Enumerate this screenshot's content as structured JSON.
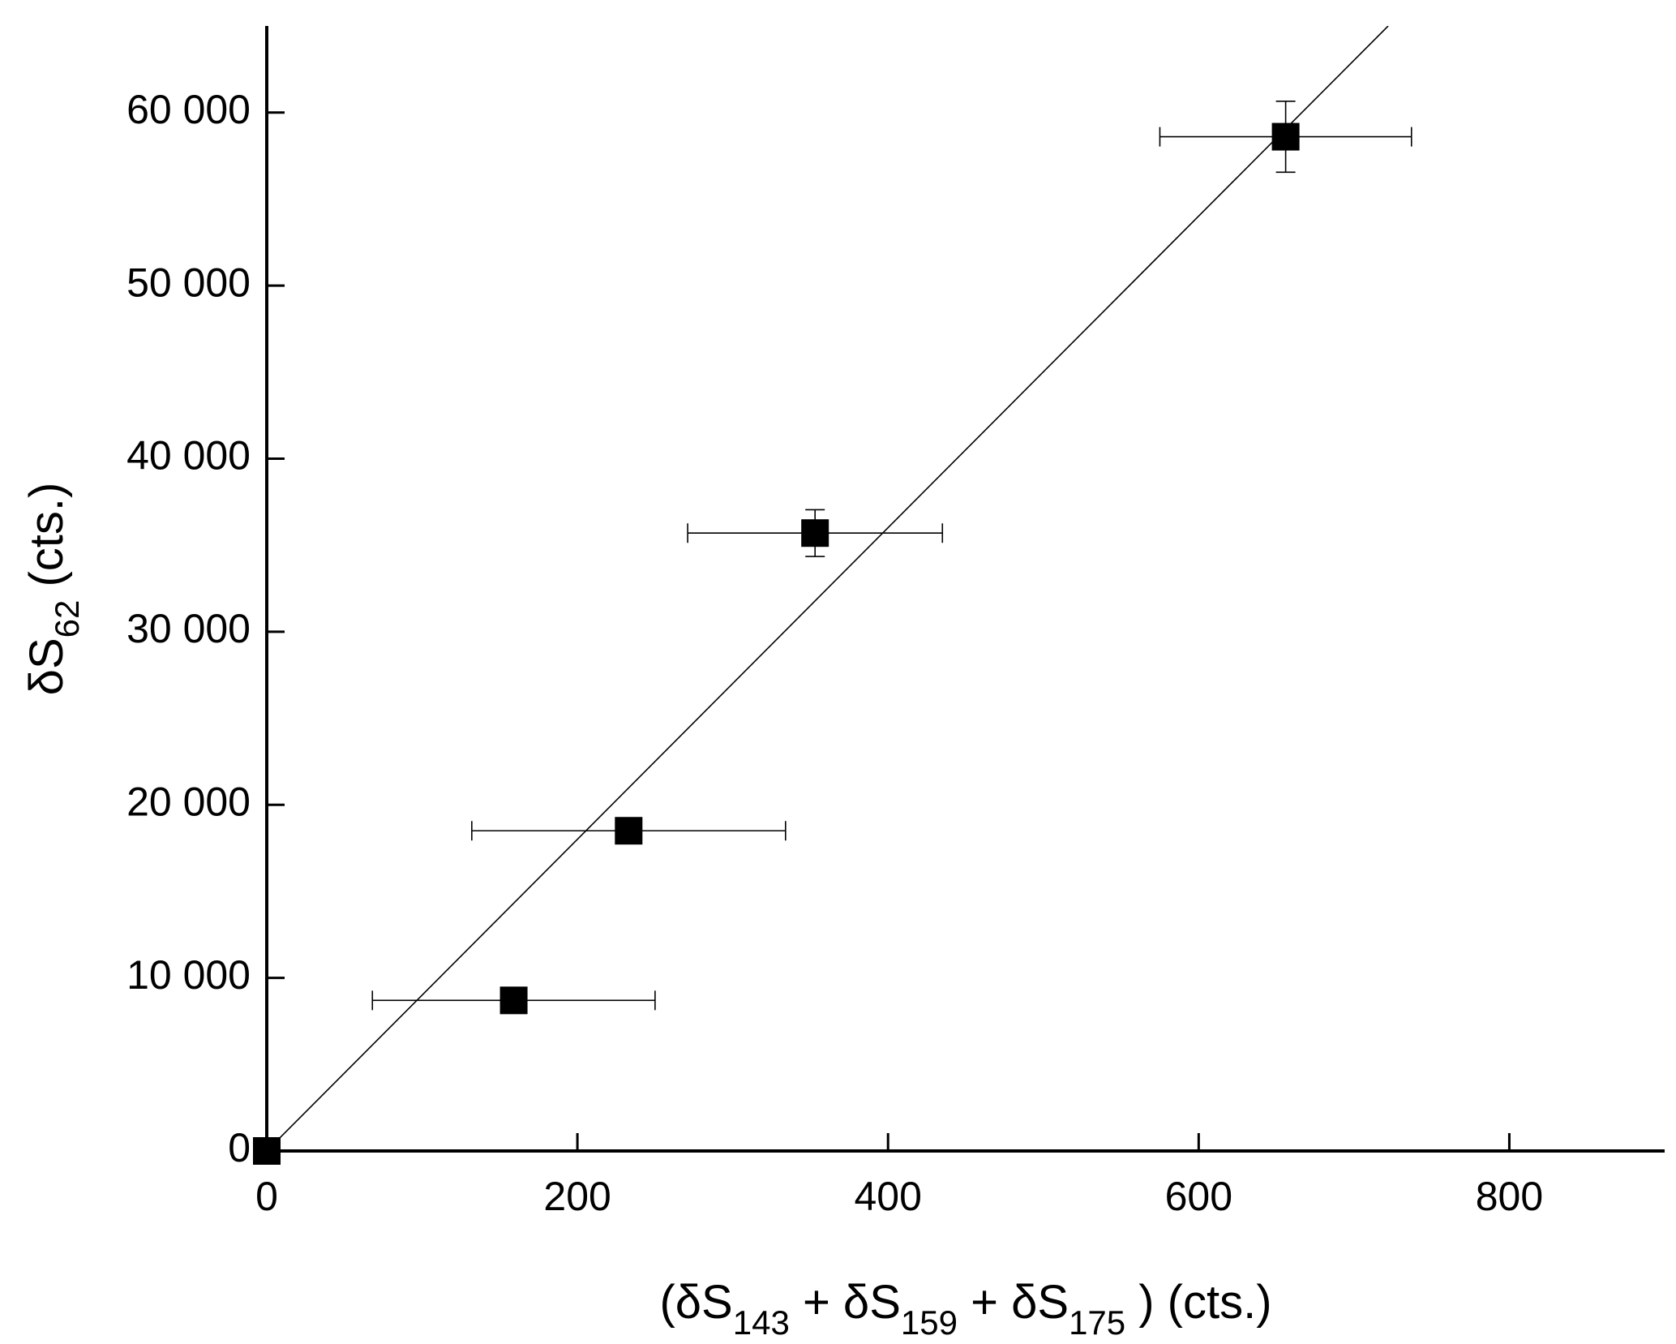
{
  "chart_data": {
    "type": "scatter",
    "xlabel": [
      {
        "text": "(δS"
      },
      {
        "text": "143",
        "sub": true
      },
      {
        "text": " + δS"
      },
      {
        "text": "159",
        "sub": true
      },
      {
        "text": " + δS"
      },
      {
        "text": "175",
        "sub": true
      },
      {
        "text": " ) (cts.)"
      }
    ],
    "ylabel": [
      {
        "text": "δS"
      },
      {
        "text": "62",
        "sub": true
      },
      {
        "text": " (cts.)"
      }
    ],
    "xlim": [
      0,
      900
    ],
    "ylim": [
      0,
      65000
    ],
    "xticks": [
      0,
      200,
      400,
      600,
      800
    ],
    "yticks": [
      0,
      {
        "value": 10000,
        "label": "10 000"
      },
      {
        "value": 20000,
        "label": "20 000"
      },
      {
        "value": 30000,
        "label": "30 000"
      },
      {
        "value": 40000,
        "label": "40 000"
      },
      {
        "value": 50000,
        "label": "50 000"
      },
      {
        "value": 60000,
        "label": "60 000"
      }
    ],
    "grid": false,
    "series": [
      {
        "x": [
          0,
          159,
          233,
          353,
          656
        ],
        "values": [
          0,
          8700,
          18500,
          35700,
          58600
        ],
        "xerr": [
          null,
          91,
          101,
          82,
          81
        ],
        "yerr": [
          null,
          null,
          700,
          1350,
          2050
        ],
        "color": "#000000"
      },
      {
        "kind": "fit",
        "x": [
          0,
          722
        ],
        "values": [
          0,
          65000
        ],
        "color": "#000000"
      }
    ]
  }
}
